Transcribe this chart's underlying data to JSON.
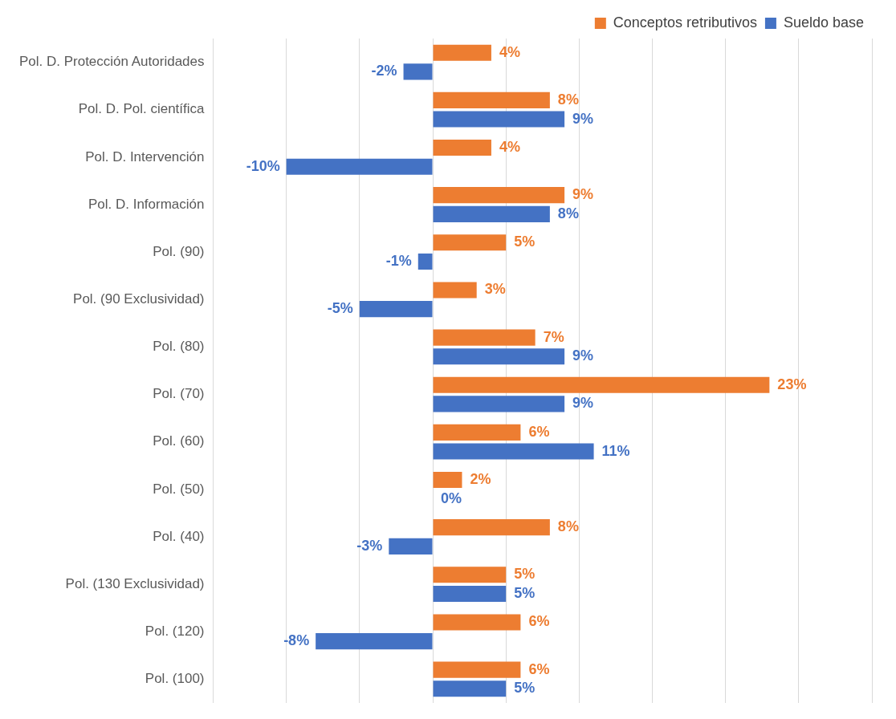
{
  "chart_data": {
    "type": "bar",
    "orientation": "horizontal",
    "categories": [
      "Pol. D. Protección Autoridades",
      "Pol. D. Pol. científica",
      "Pol. D. Intervención",
      "Pol. D. Información",
      "Pol. (90)",
      "Pol. (90 Exclusividad)",
      "Pol. (80)",
      "Pol. (70)",
      "Pol. (60)",
      "Pol. (50)",
      "Pol. (40)",
      "Pol. (130 Exclusividad)",
      "Pol. (120)",
      "Pol. (100)"
    ],
    "series": [
      {
        "name": "Conceptos retributivos",
        "color": "#ed7d31",
        "values": [
          4,
          8,
          4,
          9,
          5,
          3,
          7,
          23,
          6,
          2,
          8,
          5,
          6,
          6
        ],
        "value_labels": [
          "4%",
          "8%",
          "4%",
          "9%",
          "5%",
          "3%",
          "7%",
          "23%",
          "6%",
          "2%",
          "8%",
          "5%",
          "6%",
          "6%"
        ]
      },
      {
        "name": "Sueldo base",
        "color": "#4472c4",
        "values": [
          -2,
          9,
          -10,
          8,
          -1,
          -5,
          9,
          9,
          11,
          0,
          -3,
          5,
          -8,
          5
        ],
        "value_labels": [
          "-2%",
          "9%",
          "-10%",
          "8%",
          "-1%",
          "-5%",
          "9%",
          "9%",
          "11%",
          "0%",
          "-3%",
          "5%",
          "-8%",
          "5%"
        ]
      }
    ],
    "xlim": [
      -15,
      30
    ],
    "xticks": [
      {
        "value": -15,
        "label": null
      },
      {
        "value": -10,
        "label": null
      },
      {
        "value": -5,
        "label": null
      },
      {
        "value": 0,
        "label": null
      },
      {
        "value": 5,
        "label": null
      },
      {
        "value": 10,
        "label": null
      },
      {
        "value": 15,
        "label": null
      },
      {
        "value": 20,
        "label": null
      },
      {
        "value": 25,
        "label": null
      },
      {
        "value": 30,
        "label": null
      }
    ],
    "grid": "x",
    "tick_labels": "y",
    "legend": "top right"
  }
}
